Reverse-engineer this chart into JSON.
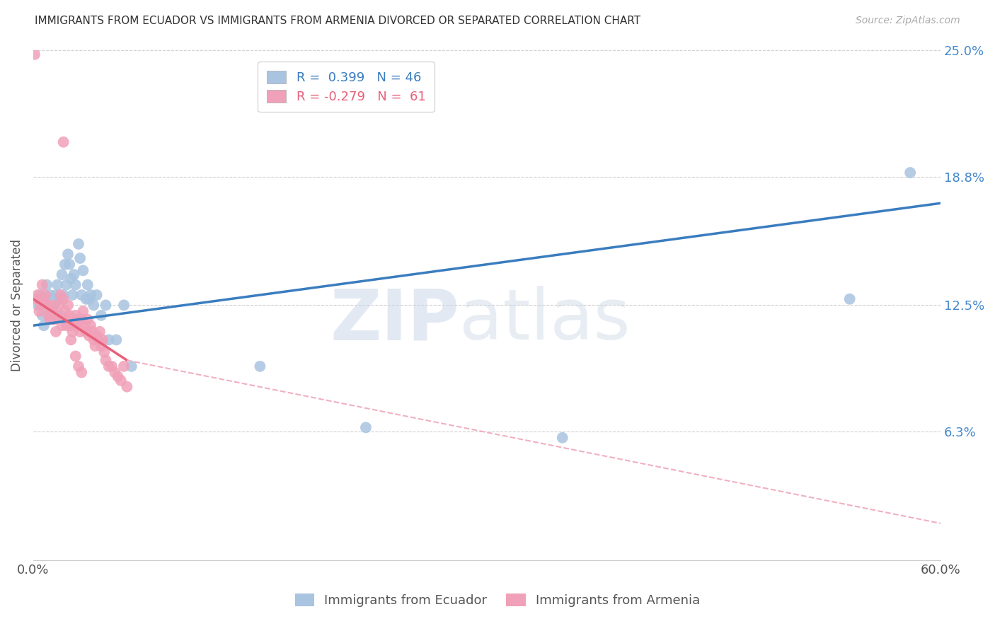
{
  "title": "IMMIGRANTS FROM ECUADOR VS IMMIGRANTS FROM ARMENIA DIVORCED OR SEPARATED CORRELATION CHART",
  "source": "Source: ZipAtlas.com",
  "ylabel": "Divorced or Separated",
  "xlim": [
    0.0,
    0.6
  ],
  "ylim": [
    0.0,
    0.25
  ],
  "xtick_labels": [
    "0.0%",
    "60.0%"
  ],
  "ytick_labels": [
    "6.3%",
    "12.5%",
    "18.8%",
    "25.0%"
  ],
  "ytick_values": [
    0.063,
    0.125,
    0.188,
    0.25
  ],
  "grid_color": "#d0d0d0",
  "background_color": "#ffffff",
  "ecuador_color": "#a8c4e0",
  "armenia_color": "#f0a0b8",
  "ecuador_line_color": "#3a7dbf",
  "armenia_line_solid_color": "#e8607a",
  "armenia_line_dash_color": "#f0b0c0",
  "legend_ecuador_r": "0.399",
  "legend_ecuador_n": "46",
  "legend_armenia_r": "-0.279",
  "legend_armenia_n": "61",
  "ecuador_scatter_x": [
    0.003,
    0.005,
    0.006,
    0.007,
    0.008,
    0.009,
    0.01,
    0.011,
    0.012,
    0.013,
    0.014,
    0.015,
    0.016,
    0.017,
    0.018,
    0.019,
    0.02,
    0.021,
    0.022,
    0.023,
    0.024,
    0.025,
    0.026,
    0.027,
    0.028,
    0.03,
    0.031,
    0.032,
    0.033,
    0.035,
    0.036,
    0.037,
    0.038,
    0.04,
    0.042,
    0.045,
    0.048,
    0.05,
    0.055,
    0.06,
    0.065,
    0.15,
    0.22,
    0.35,
    0.54,
    0.58
  ],
  "ecuador_scatter_y": [
    0.125,
    0.13,
    0.12,
    0.115,
    0.128,
    0.135,
    0.125,
    0.13,
    0.122,
    0.118,
    0.125,
    0.13,
    0.135,
    0.128,
    0.12,
    0.14,
    0.13,
    0.145,
    0.135,
    0.15,
    0.145,
    0.138,
    0.13,
    0.14,
    0.135,
    0.155,
    0.148,
    0.13,
    0.142,
    0.128,
    0.135,
    0.128,
    0.13,
    0.125,
    0.13,
    0.12,
    0.125,
    0.108,
    0.108,
    0.125,
    0.095,
    0.095,
    0.065,
    0.06,
    0.128,
    0.19
  ],
  "armenia_scatter_x": [
    0.001,
    0.002,
    0.003,
    0.004,
    0.005,
    0.006,
    0.007,
    0.008,
    0.009,
    0.01,
    0.011,
    0.012,
    0.013,
    0.014,
    0.015,
    0.016,
    0.017,
    0.018,
    0.019,
    0.02,
    0.021,
    0.022,
    0.023,
    0.024,
    0.025,
    0.026,
    0.027,
    0.028,
    0.029,
    0.03,
    0.031,
    0.032,
    0.033,
    0.034,
    0.035,
    0.036,
    0.037,
    0.038,
    0.039,
    0.04,
    0.041,
    0.042,
    0.043,
    0.044,
    0.045,
    0.046,
    0.047,
    0.048,
    0.05,
    0.052,
    0.054,
    0.056,
    0.058,
    0.06,
    0.062,
    0.028,
    0.03,
    0.032,
    0.02,
    0.022,
    0.025
  ],
  "armenia_scatter_y": [
    0.248,
    0.128,
    0.13,
    0.122,
    0.125,
    0.135,
    0.128,
    0.13,
    0.125,
    0.12,
    0.118,
    0.122,
    0.125,
    0.118,
    0.112,
    0.12,
    0.125,
    0.13,
    0.115,
    0.128,
    0.122,
    0.118,
    0.125,
    0.12,
    0.115,
    0.112,
    0.115,
    0.12,
    0.118,
    0.115,
    0.112,
    0.118,
    0.122,
    0.115,
    0.112,
    0.118,
    0.11,
    0.115,
    0.112,
    0.108,
    0.105,
    0.11,
    0.108,
    0.112,
    0.105,
    0.108,
    0.102,
    0.098,
    0.095,
    0.095,
    0.092,
    0.09,
    0.088,
    0.095,
    0.085,
    0.1,
    0.095,
    0.092,
    0.205,
    0.115,
    0.108
  ],
  "ecuador_line_x": [
    0.0,
    0.6
  ],
  "ecuador_line_y": [
    0.115,
    0.175
  ],
  "armenia_line_x0": 0.0,
  "armenia_line_x_solid_end": 0.062,
  "armenia_line_x1": 0.6,
  "armenia_line_y0": 0.128,
  "armenia_line_y_solid_end": 0.098,
  "armenia_line_y1": 0.018
}
